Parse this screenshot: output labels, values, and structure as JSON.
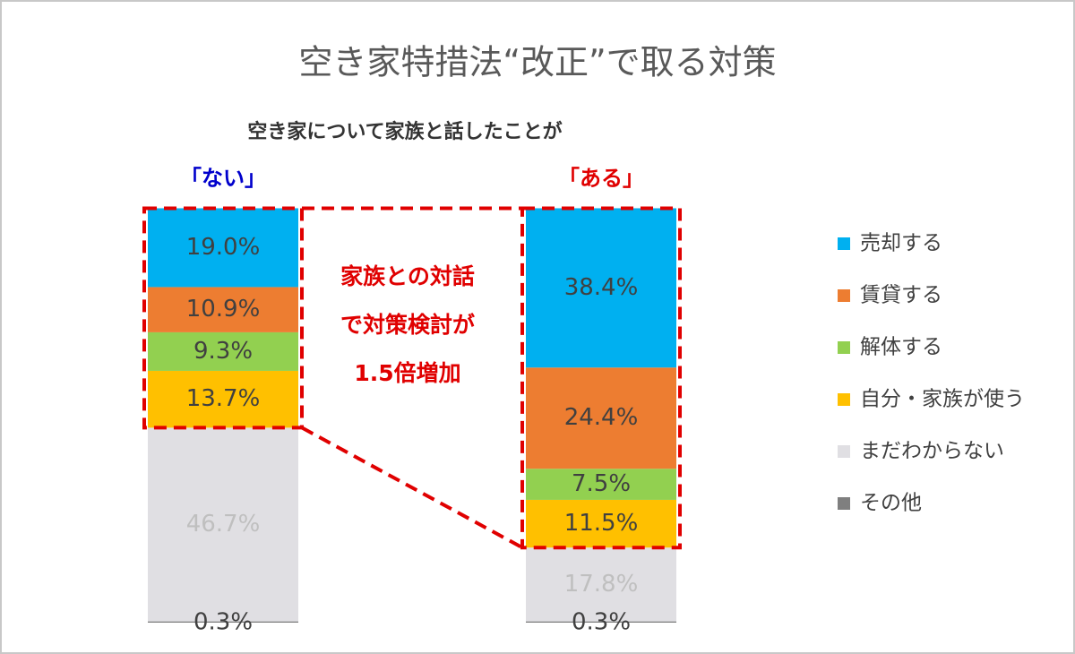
{
  "chart_data": {
    "type": "stacked-bar",
    "title": "空き家特措法“改正”で取る対策",
    "subtitle": "空き家について家族と話したことが",
    "annotation": [
      "家族との対話",
      "で対策検討が",
      "1.5倍増加"
    ],
    "categories": [
      "「ない」",
      "「ある」"
    ],
    "category_colors": [
      "#0000cc",
      "#e00000"
    ],
    "series": [
      {
        "name": "売却する",
        "color": "#00b0f0",
        "values": [
          19.0,
          38.4
        ],
        "value_labels": [
          "19.0%",
          "38.4%"
        ]
      },
      {
        "name": "賃貸する",
        "color": "#ed7d31",
        "values": [
          10.9,
          24.4
        ],
        "value_labels": [
          "10.9%",
          "24.4%"
        ]
      },
      {
        "name": "解体する",
        "color": "#92d050",
        "values": [
          9.3,
          7.5
        ],
        "value_labels": [
          "9.3%",
          "7.5%"
        ]
      },
      {
        "name": "自分・家族が使う",
        "color": "#ffc000",
        "values": [
          13.7,
          11.5
        ],
        "value_labels": [
          "13.7%",
          "11.5%"
        ]
      },
      {
        "name": "まだわからない",
        "color": "#e0dfe3",
        "values": [
          46.7,
          17.8
        ],
        "value_labels": [
          "46.7%",
          "17.8%"
        ]
      },
      {
        "name": "その他",
        "color": "#7f7f7f",
        "values": [
          0.3,
          0.3
        ],
        "value_labels": [
          "0.3%",
          "0.3%"
        ]
      }
    ],
    "highlight_color": "#e00000"
  }
}
